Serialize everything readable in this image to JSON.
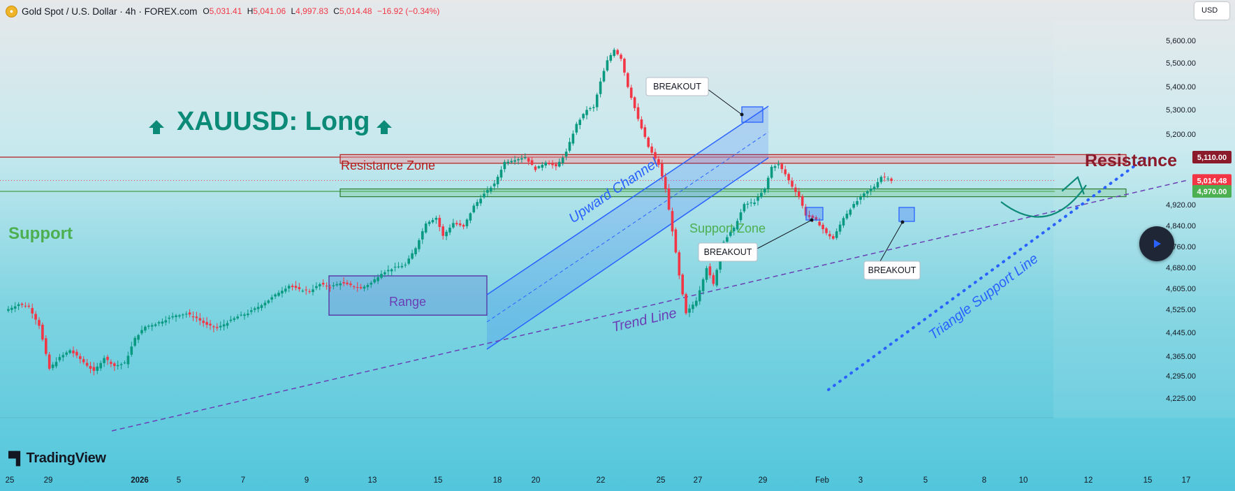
{
  "header": {
    "symbol": "Gold Spot / U.S. Dollar · 4h · FOREX.com",
    "ohlc": [
      {
        "k": "O",
        "v": "5,031.41"
      },
      {
        "k": "H",
        "v": "5,041.06"
      },
      {
        "k": "L",
        "v": "4,997.83"
      },
      {
        "k": "C",
        "v": "5,014.48"
      }
    ],
    "change": "−16.92 (−0.34%)"
  },
  "currency_button": "USD",
  "logo": "TradingView",
  "colors": {
    "up": "#089981",
    "down": "#f23645",
    "resistance": "#8b1a2b",
    "support": "#4caf50",
    "channel": "#2962ff",
    "trend": "#6a3fb5",
    "title": "#0c8a78"
  },
  "chart_data": {
    "type": "candlestick",
    "price_axis": {
      "ticks": [
        5600,
        5500,
        5400,
        5300,
        5200,
        4920,
        4840,
        4760,
        4680,
        4605,
        4525,
        4445,
        4365,
        4295,
        4225
      ],
      "tick_labels": [
        "5,600.00",
        "5,500.00",
        "5,400.00",
        "5,300.00",
        "5,200.00",
        "4,920.00",
        "4,840.00",
        "4,760.00",
        "4,680.00",
        "4,605.00",
        "4,525.00",
        "4,445.00",
        "4,365.00",
        "4,295.00",
        "4,225.00"
      ],
      "last_price": {
        "value": 5014.48,
        "label": "5,014.48"
      },
      "resistance_tag": {
        "value": 5110,
        "label": "5,110.00"
      },
      "support_tag": {
        "value": 4970,
        "label": "4,970.00"
      }
    },
    "time_axis": [
      "25",
      "29",
      "2026",
      "5",
      "7",
      "9",
      "13",
      "15",
      "18",
      "20",
      "22",
      "25",
      "27",
      "29",
      "Feb",
      "3",
      "5",
      "8",
      "10",
      "12",
      "15",
      "17"
    ],
    "annotations": {
      "title": "XAUUSD: Long",
      "support_label": "Support",
      "resistance_label": "Resistance",
      "resistance_zone_label": "Resistance Zone",
      "support_zone_label": "Support Zone",
      "range_label": "Range",
      "channel_label": "Upward Channel",
      "trend_label": "Trend Line",
      "triangle_label": "Triangle Support Line",
      "breakout_labels": [
        "BREAKOUT",
        "BREAKOUT",
        "BREAKOUT"
      ]
    },
    "zones": {
      "resistance": [
        5085,
        5120
      ],
      "support": [
        4950,
        4980
      ],
      "range": {
        "top": 4650,
        "bottom": 4505
      }
    },
    "candle_pivots": [
      [
        0,
        4520
      ],
      [
        4,
        4545
      ],
      [
        7,
        4535
      ],
      [
        10,
        4470
      ],
      [
        13,
        4320
      ],
      [
        16,
        4360
      ],
      [
        19,
        4385
      ],
      [
        22,
        4355
      ],
      [
        26,
        4310
      ],
      [
        29,
        4360
      ],
      [
        32,
        4330
      ],
      [
        35,
        4340
      ],
      [
        38,
        4425
      ],
      [
        41,
        4465
      ],
      [
        44,
        4475
      ],
      [
        47,
        4490
      ],
      [
        50,
        4505
      ],
      [
        53,
        4510
      ],
      [
        56,
        4495
      ],
      [
        59,
        4470
      ],
      [
        62,
        4460
      ],
      [
        65,
        4480
      ],
      [
        68,
        4500
      ],
      [
        71,
        4512
      ],
      [
        74,
        4535
      ],
      [
        77,
        4560
      ],
      [
        80,
        4590
      ],
      [
        83,
        4615
      ],
      [
        86,
        4600
      ],
      [
        89,
        4595
      ],
      [
        92,
        4620
      ],
      [
        95,
        4610
      ],
      [
        98,
        4625
      ],
      [
        101,
        4615
      ],
      [
        104,
        4605
      ],
      [
        107,
        4625
      ],
      [
        110,
        4660
      ],
      [
        114,
        4680
      ],
      [
        117,
        4690
      ],
      [
        120,
        4755
      ],
      [
        123,
        4850
      ],
      [
        126,
        4870
      ],
      [
        128,
        4800
      ],
      [
        131,
        4850
      ],
      [
        134,
        4835
      ],
      [
        137,
        4915
      ],
      [
        140,
        4960
      ],
      [
        143,
        5000
      ],
      [
        146,
        5090
      ],
      [
        149,
        5100
      ],
      [
        152,
        5110
      ],
      [
        155,
        5060
      ],
      [
        158,
        5090
      ],
      [
        161,
        5070
      ],
      [
        164,
        5130
      ],
      [
        167,
        5240
      ],
      [
        170,
        5300
      ],
      [
        172,
        5310
      ],
      [
        174,
        5420
      ],
      [
        176,
        5510
      ],
      [
        178,
        5560
      ],
      [
        180,
        5520
      ],
      [
        182,
        5400
      ],
      [
        185,
        5260
      ],
      [
        188,
        5150
      ],
      [
        191,
        5080
      ],
      [
        193,
        4980
      ],
      [
        195,
        4820
      ],
      [
        197,
        4650
      ],
      [
        199,
        4510
      ],
      [
        202,
        4560
      ],
      [
        205,
        4680
      ],
      [
        207,
        4620
      ],
      [
        210,
        4780
      ],
      [
        213,
        4830
      ],
      [
        216,
        4920
      ],
      [
        219,
        4930
      ],
      [
        222,
        4980
      ],
      [
        224,
        5070
      ],
      [
        226,
        5080
      ],
      [
        228,
        5040
      ],
      [
        230,
        4990
      ],
      [
        232,
        4950
      ],
      [
        234,
        4880
      ],
      [
        237,
        4860
      ],
      [
        240,
        4810
      ],
      [
        242,
        4790
      ],
      [
        245,
        4870
      ],
      [
        248,
        4920
      ],
      [
        251,
        4960
      ],
      [
        254,
        4990
      ],
      [
        256,
        5030
      ],
      [
        258,
        5025
      ],
      [
        259,
        5014
      ]
    ]
  }
}
